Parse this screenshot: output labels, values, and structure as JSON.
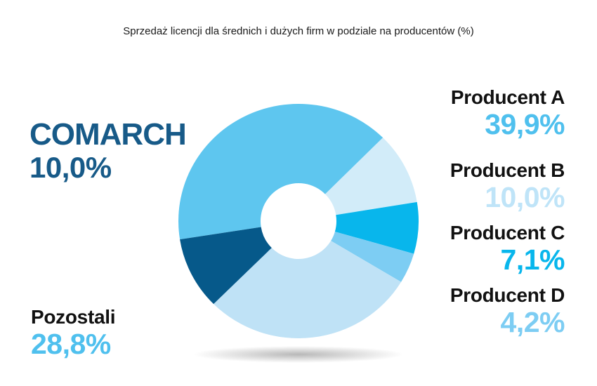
{
  "title": "Sprzedaż licencji dla średnich i dużych firm w podziale na producentów (%)",
  "colors": {
    "producent_a": "#5ec6ef",
    "producent_b": "#d2ecf9",
    "producent_c": "#08b6ec",
    "producent_d": "#7dcdf3",
    "pozostali": "#bfe2f6",
    "comarch": "#06598a",
    "label_dark": "#111111",
    "value_light": "#4fc0ee",
    "comarch_text": "#175a88"
  },
  "labels": {
    "comarch_name": "COMARCH",
    "comarch_value": "10,0%",
    "producent_a_name": "Producent A",
    "producent_a_value": "39,9%",
    "producent_b_name": "Producent B",
    "producent_b_value": "10,0%",
    "producent_c_name": "Producent C",
    "producent_c_value": "7,1%",
    "producent_d_name": "Producent D",
    "producent_d_value": "4,2%",
    "pozostali_name": "Pozostali",
    "pozostali_value": "28,8%"
  },
  "chart_data": {
    "type": "pie",
    "title": "Sprzedaż licencji dla średnich i dużych firm w podziale na producentów (%)",
    "donut": true,
    "unit": "%",
    "slices": [
      {
        "name": "Producent A",
        "value": 39.9,
        "color": "#5ec6ef"
      },
      {
        "name": "Producent B",
        "value": 10.0,
        "color": "#d2ecf9"
      },
      {
        "name": "Producent C",
        "value": 7.1,
        "color": "#08b6ec"
      },
      {
        "name": "Producent D",
        "value": 4.2,
        "color": "#7dcdf3"
      },
      {
        "name": "Pozostali",
        "value": 28.8,
        "color": "#bfe2f6"
      },
      {
        "name": "COMARCH",
        "value": 10.0,
        "color": "#06598a"
      }
    ]
  }
}
